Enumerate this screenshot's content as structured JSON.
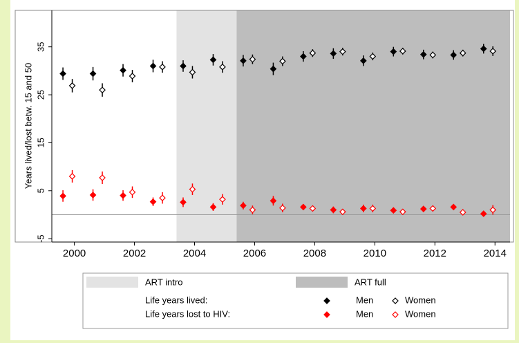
{
  "chart_data": {
    "type": "scatter",
    "ylabel": "Years lived/lost betw. 15 and 50",
    "xlim": [
      1999.25,
      2014.5
    ],
    "ylim": [
      -5.7,
      42.6
    ],
    "xticks": [
      2000,
      2002,
      2004,
      2006,
      2008,
      2010,
      2012,
      2014
    ],
    "yticks": [
      -5,
      5,
      15,
      25,
      35
    ],
    "hline": 0,
    "regions": [
      {
        "name": "ART intro",
        "color": "#e3e3e3",
        "range": [
          2003.4,
          2005.4
        ]
      },
      {
        "name": "ART full",
        "color": "#bdbdbd",
        "range": [
          2005.4,
          2014.5
        ]
      }
    ],
    "groups": [
      "Life years lived:",
      "Life years lost to HIV:"
    ],
    "series": [
      {
        "name": "Men",
        "group": 0,
        "color": "#000000",
        "filled": true,
        "x": [
          1999.62,
          2000.62,
          2001.62,
          2002.62,
          2003.62,
          2004.62,
          2005.62,
          2006.62,
          2007.62,
          2008.62,
          2009.62,
          2010.62,
          2011.62,
          2012.62,
          2013.62
        ],
        "values": [
          29.4,
          29.4,
          30.1,
          31.0,
          31.0,
          32.3,
          32.1,
          30.4,
          33.0,
          33.6,
          32.1,
          34.0,
          33.4,
          33.3,
          34.6
        ],
        "errors": [
          1.3,
          1.4,
          1.3,
          1.3,
          1.2,
          1.2,
          1.2,
          1.3,
          1.1,
          1.1,
          1.1,
          1.0,
          1.0,
          1.0,
          1.0
        ]
      },
      {
        "name": "Women",
        "group": 0,
        "color": "#000000",
        "filled": false,
        "x": [
          1999.93,
          2000.93,
          2001.93,
          2002.93,
          2003.93,
          2004.93,
          2005.93,
          2006.93,
          2007.93,
          2008.93,
          2009.93,
          2010.93,
          2011.93,
          2012.93,
          2013.93
        ],
        "values": [
          26.9,
          26.0,
          28.9,
          30.8,
          29.7,
          30.8,
          32.4,
          32.0,
          33.7,
          34.0,
          33.0,
          34.1,
          33.3,
          33.7,
          34.1
        ],
        "errors": [
          1.4,
          1.4,
          1.3,
          1.2,
          1.3,
          1.2,
          1.0,
          1.0,
          0.8,
          0.8,
          0.8,
          0.7,
          0.7,
          0.7,
          1.0
        ]
      },
      {
        "name": "Men",
        "group": 1,
        "color": "#ff0000",
        "filled": true,
        "x": [
          1999.62,
          2000.62,
          2001.62,
          2002.62,
          2003.62,
          2004.62,
          2005.62,
          2006.62,
          2007.62,
          2008.62,
          2009.62,
          2010.62,
          2011.62,
          2012.62,
          2013.62
        ],
        "values": [
          3.9,
          4.1,
          4.0,
          2.7,
          2.6,
          1.6,
          1.9,
          2.9,
          1.6,
          1.0,
          1.3,
          0.9,
          1.2,
          1.6,
          0.2
        ],
        "errors": [
          1.2,
          1.2,
          1.1,
          0.9,
          1.0,
          0.8,
          0.8,
          1.0,
          0.6,
          0.7,
          0.8,
          0.5,
          0.6,
          0.6,
          0.6
        ]
      },
      {
        "name": "Women",
        "group": 1,
        "color": "#ff0000",
        "filled": false,
        "x": [
          1999.93,
          2000.93,
          2001.93,
          2002.93,
          2003.93,
          2004.93,
          2005.93,
          2006.93,
          2007.93,
          2008.93,
          2009.93,
          2010.93,
          2011.93,
          2012.93,
          2013.93
        ],
        "values": [
          8.0,
          7.7,
          4.7,
          3.5,
          5.3,
          3.2,
          1.0,
          1.4,
          1.3,
          0.6,
          1.3,
          0.6,
          1.3,
          0.5,
          1.0
        ],
        "errors": [
          1.3,
          1.3,
          1.2,
          1.2,
          1.2,
          1.1,
          0.9,
          0.9,
          0.6,
          0.6,
          0.8,
          0.5,
          0.6,
          0.5,
          1.0
        ]
      }
    ]
  }
}
